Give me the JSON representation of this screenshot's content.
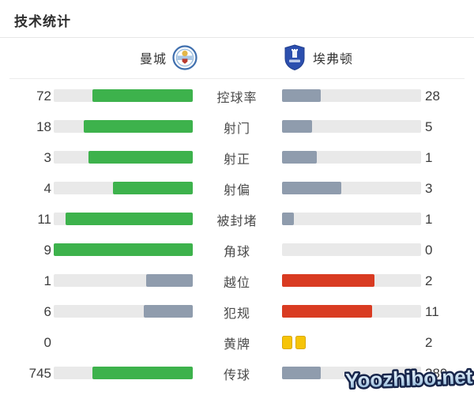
{
  "title": "技术统计",
  "watermark": "Yoozhibo.net",
  "header": {
    "home_team": "曼城",
    "away_team": "埃弗顿"
  },
  "colors": {
    "home_win": "#3db24c",
    "away_win": "#d93b22",
    "lose": "#8f9cad",
    "track": "#e9e9e9",
    "card_yellow": "#f6c408"
  },
  "chart_data": {
    "type": "bar",
    "title": "技术统计",
    "teams": [
      "曼城",
      "埃弗顿"
    ],
    "categories": [
      "控球率",
      "射门",
      "射正",
      "射偏",
      "被封堵",
      "角球",
      "越位",
      "犯规",
      "黄牌",
      "传球"
    ],
    "series": [
      {
        "name": "曼城",
        "values": [
          72,
          18,
          3,
          4,
          11,
          9,
          1,
          6,
          0,
          745
        ]
      },
      {
        "name": "埃弗顿",
        "values": [
          28,
          5,
          1,
          3,
          1,
          0,
          2,
          11,
          2,
          289
        ]
      }
    ],
    "layout": "paired horizontal bars; home fill right-aligned, away fill left-aligned; fill width = value/(home+away)",
    "grid": false,
    "legend_position": "top",
    "rows": [
      {
        "label": "控球率",
        "home": 72,
        "away": 28,
        "home_color": "home_win",
        "away_color": "lose"
      },
      {
        "label": "射门",
        "home": 18,
        "away": 5,
        "home_color": "home_win",
        "away_color": "lose"
      },
      {
        "label": "射正",
        "home": 3,
        "away": 1,
        "home_color": "home_win",
        "away_color": "lose"
      },
      {
        "label": "射偏",
        "home": 4,
        "away": 3,
        "home_color": "home_win",
        "away_color": "lose"
      },
      {
        "label": "被封堵",
        "home": 11,
        "away": 1,
        "home_color": "home_win",
        "away_color": "lose"
      },
      {
        "label": "角球",
        "home": 9,
        "away": 0,
        "home_color": "home_win",
        "away_color": "lose"
      },
      {
        "label": "越位",
        "home": 1,
        "away": 2,
        "home_color": "lose",
        "away_color": "away_win"
      },
      {
        "label": "犯规",
        "home": 6,
        "away": 11,
        "home_color": "lose",
        "away_color": "away_win"
      },
      {
        "label": "黄牌",
        "home": 0,
        "away": 2,
        "style": "cards"
      },
      {
        "label": "传球",
        "home": 745,
        "away": 289,
        "home_color": "home_win",
        "away_color": "lose"
      }
    ]
  }
}
